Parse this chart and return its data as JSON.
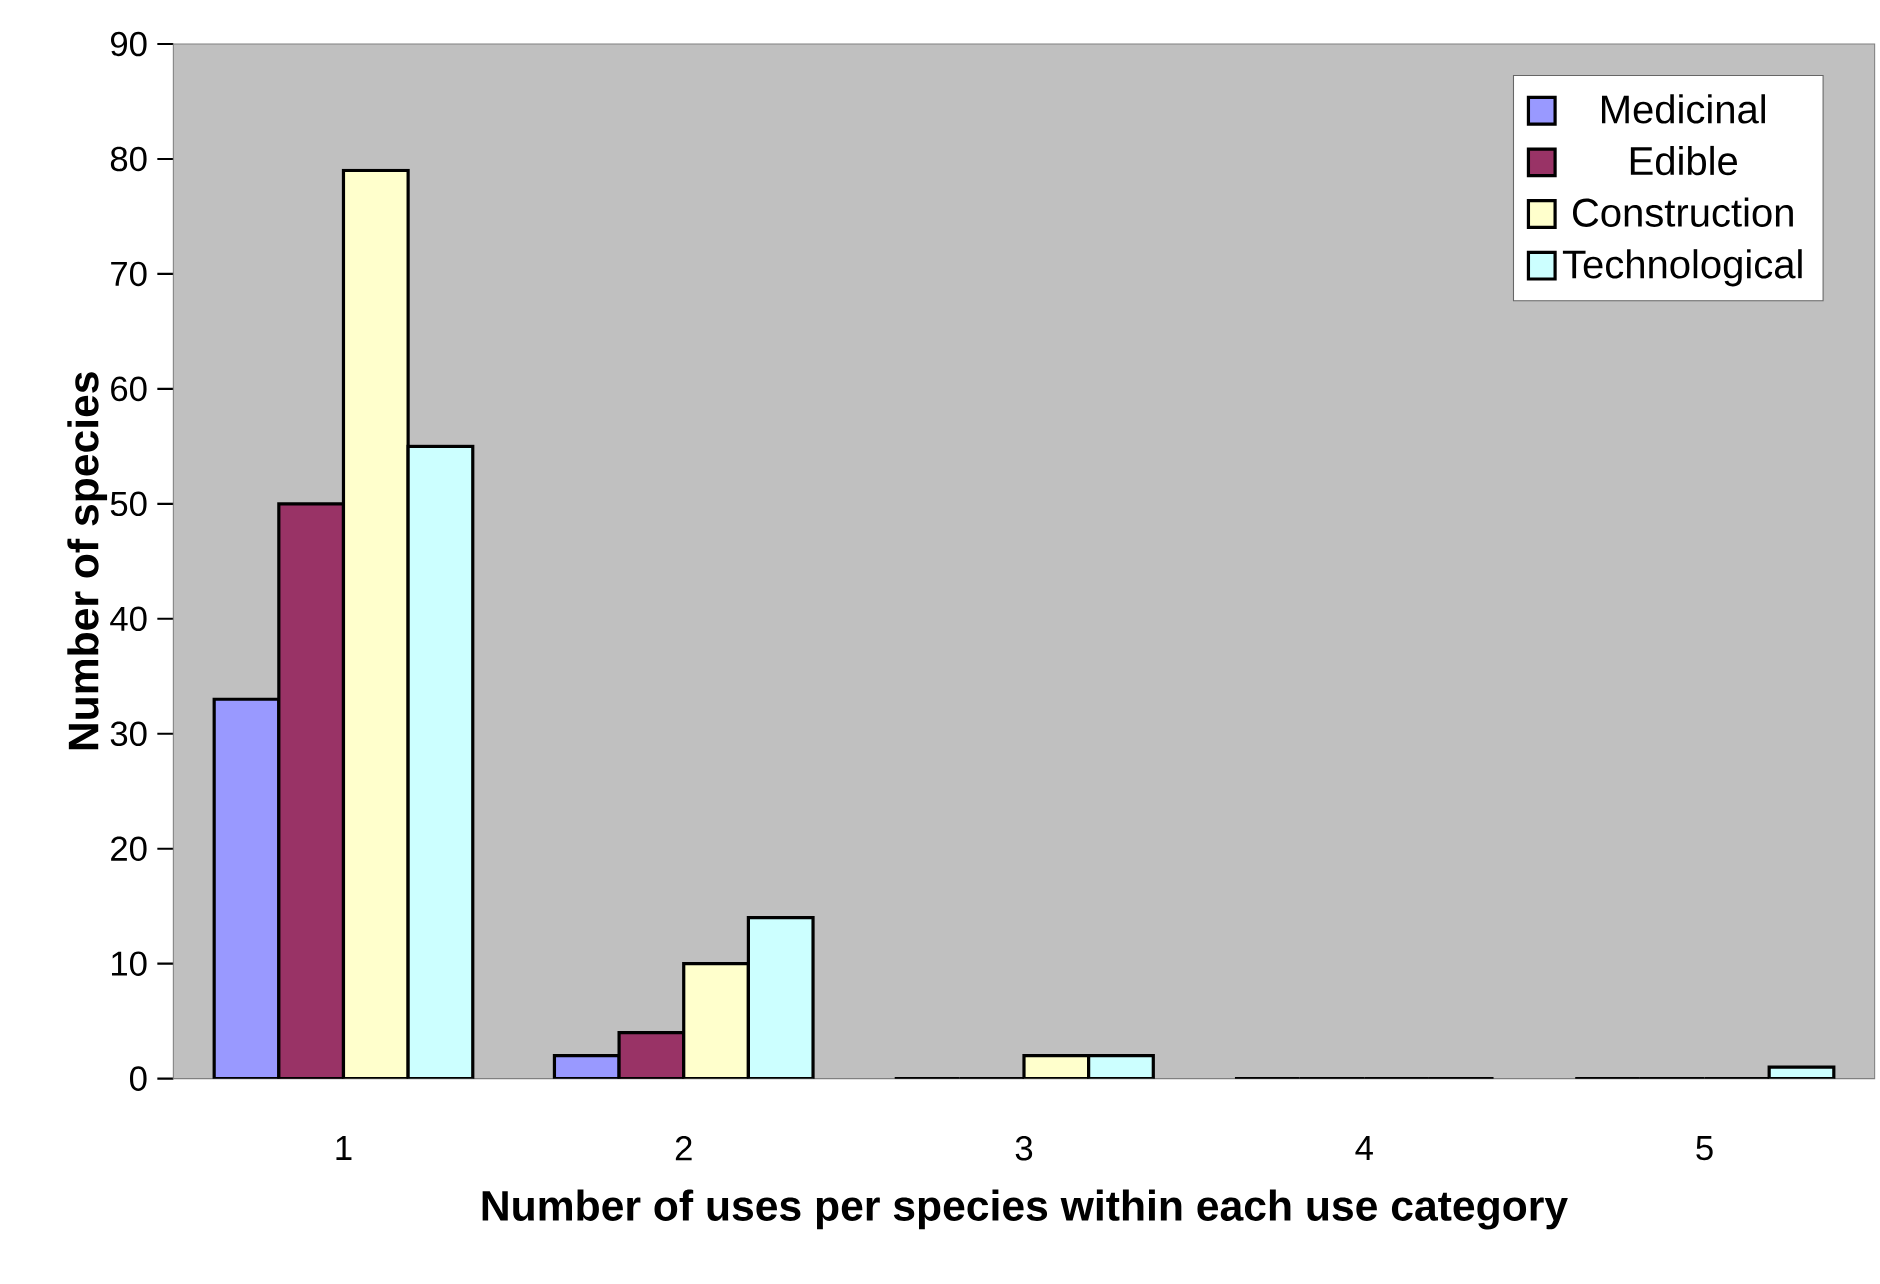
{
  "chart_data": {
    "type": "bar",
    "xlabel": "Number of uses per species within each use category",
    "ylabel": "Number of species",
    "categories": [
      "1",
      "2",
      "3",
      "4",
      "5"
    ],
    "series": [
      {
        "name": "Medicinal",
        "color": "#9999ff",
        "values": [
          33,
          2,
          0,
          0,
          0
        ]
      },
      {
        "name": "Edible",
        "color": "#993366",
        "values": [
          50,
          4,
          0,
          0,
          0
        ]
      },
      {
        "name": "Construction",
        "color": "#ffffcc",
        "values": [
          79,
          10,
          2,
          0,
          0
        ]
      },
      {
        "name": "Technological",
        "color": "#ccffff",
        "values": [
          55,
          14,
          2,
          0,
          1
        ]
      }
    ],
    "ylim": [
      0,
      90
    ],
    "yticks": [
      0,
      10,
      20,
      30,
      40,
      50,
      60,
      70,
      80,
      90
    ],
    "legend": "top right",
    "grid": false
  }
}
